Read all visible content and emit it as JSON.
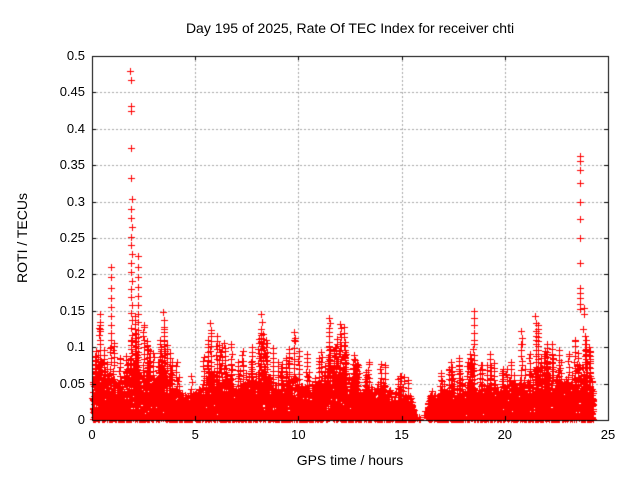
{
  "colors": {
    "background": "#ffffff",
    "marker": "#ff0000",
    "grid": "#a9a9a9",
    "axis": "#000000",
    "text": "#000000"
  },
  "chart_data": {
    "type": "scatter",
    "title": "Day 195 of 2025, Rate Of TEC Index for receiver chti",
    "xlabel": "GPS time / hours",
    "ylabel": "ROTI / TECUs",
    "xlim": [
      0,
      25
    ],
    "ylim": [
      0,
      0.5
    ],
    "xticks": [
      0,
      5,
      10,
      15,
      20,
      25
    ],
    "xtick_labels": [
      "0",
      "5",
      "10",
      "15",
      "20",
      "25"
    ],
    "yticks": [
      0,
      0.05,
      0.1,
      0.15,
      0.2,
      0.25,
      0.3,
      0.35,
      0.4,
      0.45,
      0.5
    ],
    "ytick_labels": [
      "0",
      "0.05",
      "0.1",
      "0.15",
      "0.2",
      "0.25",
      "0.3",
      "0.35",
      "0.4",
      "0.45",
      "0.5"
    ],
    "grid": {
      "show": true,
      "style": "dashed",
      "color": "#a9a9a9"
    },
    "marker": {
      "shape": "plus",
      "color": "#ff0000",
      "size": 7
    },
    "series_name": "ROTI",
    "x_data_range": [
      0.02,
      24.3
    ],
    "gaps": [
      [
        15.58,
        16.28
      ]
    ],
    "band_envelope": [
      [
        0.0,
        0.055
      ],
      [
        0.2,
        0.07
      ],
      [
        0.4,
        0.09
      ],
      [
        0.6,
        0.075
      ],
      [
        0.9,
        0.06
      ],
      [
        1.2,
        0.05
      ],
      [
        1.5,
        0.055
      ],
      [
        1.8,
        0.09
      ],
      [
        2.1,
        0.08
      ],
      [
        2.4,
        0.065
      ],
      [
        2.7,
        0.06
      ],
      [
        3.0,
        0.05
      ],
      [
        3.3,
        0.065
      ],
      [
        3.6,
        0.06
      ],
      [
        3.9,
        0.045
      ],
      [
        4.2,
        0.04
      ],
      [
        4.6,
        0.038
      ],
      [
        5.0,
        0.035
      ],
      [
        5.4,
        0.05
      ],
      [
        5.8,
        0.065
      ],
      [
        6.2,
        0.055
      ],
      [
        6.6,
        0.06
      ],
      [
        7.0,
        0.045
      ],
      [
        7.4,
        0.05
      ],
      [
        7.8,
        0.055
      ],
      [
        8.2,
        0.07
      ],
      [
        8.6,
        0.06
      ],
      [
        9.0,
        0.045
      ],
      [
        9.4,
        0.05
      ],
      [
        9.8,
        0.06
      ],
      [
        10.2,
        0.045
      ],
      [
        10.6,
        0.04
      ],
      [
        11.0,
        0.05
      ],
      [
        11.4,
        0.07
      ],
      [
        11.8,
        0.085
      ],
      [
        12.2,
        0.07
      ],
      [
        12.6,
        0.055
      ],
      [
        13.0,
        0.05
      ],
      [
        13.4,
        0.045
      ],
      [
        13.8,
        0.05
      ],
      [
        14.2,
        0.045
      ],
      [
        14.6,
        0.04
      ],
      [
        15.0,
        0.035
      ],
      [
        15.4,
        0.03
      ],
      [
        15.7,
        0.008
      ],
      [
        16.1,
        0.008
      ],
      [
        16.4,
        0.035
      ],
      [
        16.8,
        0.035
      ],
      [
        17.2,
        0.04
      ],
      [
        17.6,
        0.045
      ],
      [
        18.0,
        0.045
      ],
      [
        18.4,
        0.055
      ],
      [
        18.8,
        0.05
      ],
      [
        19.2,
        0.045
      ],
      [
        19.6,
        0.04
      ],
      [
        20.0,
        0.045
      ],
      [
        20.4,
        0.05
      ],
      [
        20.8,
        0.055
      ],
      [
        21.2,
        0.06
      ],
      [
        21.6,
        0.075
      ],
      [
        22.0,
        0.065
      ],
      [
        22.4,
        0.06
      ],
      [
        22.8,
        0.055
      ],
      [
        23.2,
        0.06
      ],
      [
        23.5,
        0.08
      ],
      [
        23.8,
        0.075
      ],
      [
        24.0,
        0.065
      ],
      [
        24.3,
        0.055
      ]
    ],
    "spike_columns": [
      {
        "x": 0.38,
        "top": 0.13
      },
      {
        "x": 0.9,
        "top": 0.1
      },
      {
        "x": 1.35,
        "top": 0.085
      },
      {
        "x": 1.9,
        "top": 0.11
      },
      {
        "x": 2.23,
        "top": 0.105
      },
      {
        "x": 2.5,
        "top": 0.13
      },
      {
        "x": 2.8,
        "top": 0.095
      },
      {
        "x": 3.5,
        "top": 0.125
      },
      {
        "x": 4.1,
        "top": 0.08
      },
      {
        "x": 4.8,
        "top": 0.06
      },
      {
        "x": 5.75,
        "top": 0.12
      },
      {
        "x": 6.3,
        "top": 0.1
      },
      {
        "x": 6.75,
        "top": 0.105
      },
      {
        "x": 7.3,
        "top": 0.095
      },
      {
        "x": 7.7,
        "top": 0.08
      },
      {
        "x": 8.2,
        "top": 0.12
      },
      {
        "x": 8.45,
        "top": 0.11
      },
      {
        "x": 9.0,
        "top": 0.08
      },
      {
        "x": 9.4,
        "top": 0.085
      },
      {
        "x": 9.8,
        "top": 0.11
      },
      {
        "x": 10.4,
        "top": 0.09
      },
      {
        "x": 11.0,
        "top": 0.085
      },
      {
        "x": 11.5,
        "top": 0.1
      },
      {
        "x": 11.75,
        "top": 0.1
      },
      {
        "x": 11.95,
        "top": 0.095
      },
      {
        "x": 12.3,
        "top": 0.09
      },
      {
        "x": 12.9,
        "top": 0.075
      },
      {
        "x": 13.4,
        "top": 0.08
      },
      {
        "x": 14.2,
        "top": 0.075
      },
      {
        "x": 14.9,
        "top": 0.06
      },
      {
        "x": 15.3,
        "top": 0.055
      },
      {
        "x": 16.9,
        "top": 0.065
      },
      {
        "x": 17.3,
        "top": 0.07
      },
      {
        "x": 17.8,
        "top": 0.075
      },
      {
        "x": 18.2,
        "top": 0.08
      },
      {
        "x": 18.5,
        "top": 0.105
      },
      {
        "x": 18.9,
        "top": 0.075
      },
      {
        "x": 19.3,
        "top": 0.09
      },
      {
        "x": 19.9,
        "top": 0.07
      },
      {
        "x": 20.3,
        "top": 0.08
      },
      {
        "x": 20.8,
        "top": 0.105
      },
      {
        "x": 21.2,
        "top": 0.09
      },
      {
        "x": 21.5,
        "top": 0.115
      },
      {
        "x": 21.9,
        "top": 0.09
      },
      {
        "x": 22.3,
        "top": 0.105
      },
      {
        "x": 22.7,
        "top": 0.08
      },
      {
        "x": 23.1,
        "top": 0.09
      },
      {
        "x": 23.4,
        "top": 0.11
      },
      {
        "x": 23.9,
        "top": 0.115
      },
      {
        "x": 24.1,
        "top": 0.1
      }
    ],
    "outlier_points": [
      [
        1.86,
        0.479
      ],
      [
        1.88,
        0.467
      ],
      [
        1.87,
        0.432
      ],
      [
        1.9,
        0.424
      ],
      [
        1.9,
        0.373
      ],
      [
        1.91,
        0.332
      ],
      [
        1.92,
        0.303
      ],
      [
        1.9,
        0.29
      ],
      [
        1.91,
        0.277
      ],
      [
        1.92,
        0.265
      ],
      [
        1.9,
        0.252
      ],
      [
        1.91,
        0.24
      ],
      [
        1.92,
        0.228
      ],
      [
        1.91,
        0.216
      ],
      [
        1.9,
        0.203
      ],
      [
        1.92,
        0.191
      ],
      [
        1.91,
        0.18
      ],
      [
        1.9,
        0.169
      ],
      [
        1.93,
        0.158
      ],
      [
        1.91,
        0.147
      ],
      [
        1.92,
        0.137
      ],
      [
        1.9,
        0.127
      ],
      [
        1.93,
        0.117
      ],
      [
        1.91,
        0.108
      ],
      [
        0.9,
        0.21
      ],
      [
        0.92,
        0.196
      ],
      [
        0.91,
        0.182
      ],
      [
        0.93,
        0.168
      ],
      [
        0.9,
        0.155
      ],
      [
        0.92,
        0.143
      ],
      [
        0.91,
        0.131
      ],
      [
        0.93,
        0.12
      ],
      [
        0.92,
        0.11
      ],
      [
        0.9,
        0.1
      ],
      [
        2.22,
        0.225
      ],
      [
        2.24,
        0.21
      ],
      [
        2.23,
        0.196
      ],
      [
        2.25,
        0.183
      ],
      [
        2.22,
        0.17
      ],
      [
        2.24,
        0.158
      ],
      [
        2.23,
        0.146
      ],
      [
        2.25,
        0.135
      ],
      [
        2.23,
        0.124
      ],
      [
        2.24,
        0.114
      ],
      [
        2.22,
        0.105
      ],
      [
        23.62,
        0.363
      ],
      [
        23.66,
        0.356
      ],
      [
        23.64,
        0.344
      ],
      [
        23.65,
        0.325
      ],
      [
        23.63,
        0.3
      ],
      [
        23.66,
        0.276
      ],
      [
        23.64,
        0.25
      ],
      [
        23.65,
        0.215
      ],
      [
        23.63,
        0.182
      ],
      [
        23.66,
        0.175
      ],
      [
        23.64,
        0.168
      ],
      [
        23.65,
        0.16
      ],
      [
        23.63,
        0.153
      ],
      [
        23.82,
        0.154
      ],
      [
        23.85,
        0.146
      ],
      [
        23.8,
        0.125
      ],
      [
        0.38,
        0.145
      ],
      [
        0.4,
        0.135
      ],
      [
        0.39,
        0.125
      ],
      [
        3.45,
        0.148
      ],
      [
        3.5,
        0.138
      ],
      [
        3.48,
        0.128
      ],
      [
        18.52,
        0.15
      ],
      [
        18.5,
        0.14
      ],
      [
        18.53,
        0.13
      ],
      [
        18.51,
        0.12
      ],
      [
        18.52,
        0.11
      ],
      [
        21.48,
        0.143
      ],
      [
        21.5,
        0.133
      ],
      [
        21.52,
        0.122
      ],
      [
        8.2,
        0.145
      ],
      [
        8.22,
        0.135
      ],
      [
        8.21,
        0.125
      ],
      [
        5.74,
        0.133
      ],
      [
        5.76,
        0.123
      ],
      [
        9.8,
        0.121
      ],
      [
        9.82,
        0.112
      ],
      [
        20.8,
        0.122
      ],
      [
        20.82,
        0.112
      ]
    ],
    "generation": {
      "seed": 20250195,
      "base_points": 7200,
      "texture_columns": 130
    }
  }
}
